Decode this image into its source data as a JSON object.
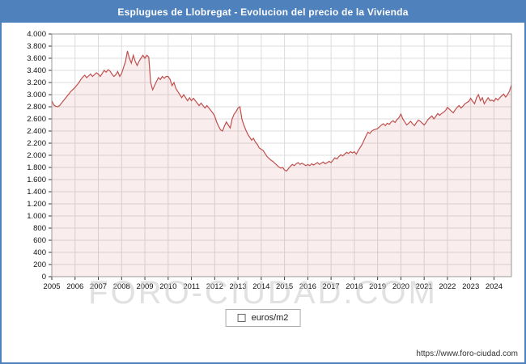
{
  "header": {
    "title": "Esplugues de Llobregat - Evolucion del precio de la Vivienda"
  },
  "legend": {
    "label": "euros/m2"
  },
  "watermark": {
    "text": "FORO-CIUDAD.COM"
  },
  "footer": {
    "url": "https://www.foro-ciudad.com"
  },
  "colors": {
    "accent": "#4f81bd",
    "line": "#c0504d",
    "grid": "#dcdcdc",
    "axis": "#999999"
  },
  "chart_data": {
    "type": "area",
    "title": "Esplugues de Llobregat - Evolucion del precio de la Vivienda",
    "ylabel": "euros/m2",
    "ylim": [
      0,
      4000
    ],
    "ytick_step": 200,
    "start_year": 2005,
    "end_year": 2024,
    "x_unit": "month",
    "grid": true,
    "legend_position": "bottom",
    "series": [
      {
        "name": "euros/m2",
        "color": "#c0504d",
        "fill_opacity": 0.1,
        "values": [
          2900,
          2830,
          2810,
          2800,
          2820,
          2860,
          2900,
          2940,
          2980,
          3020,
          3060,
          3090,
          3120,
          3160,
          3200,
          3250,
          3290,
          3320,
          3280,
          3310,
          3340,
          3300,
          3330,
          3360,
          3340,
          3300,
          3350,
          3400,
          3370,
          3410,
          3390,
          3340,
          3300,
          3330,
          3380,
          3300,
          3350,
          3450,
          3550,
          3720,
          3600,
          3520,
          3650,
          3550,
          3480,
          3550,
          3600,
          3650,
          3600,
          3650,
          3620,
          3200,
          3080,
          3150,
          3220,
          3280,
          3250,
          3300,
          3270,
          3300,
          3300,
          3250,
          3150,
          3200,
          3100,
          3050,
          3000,
          2950,
          3000,
          2950,
          2900,
          2950,
          2900,
          2940,
          2900,
          2860,
          2820,
          2860,
          2820,
          2780,
          2820,
          2780,
          2740,
          2700,
          2650,
          2550,
          2480,
          2420,
          2400,
          2480,
          2550,
          2500,
          2450,
          2600,
          2680,
          2720,
          2780,
          2800,
          2600,
          2500,
          2420,
          2350,
          2300,
          2250,
          2280,
          2220,
          2180,
          2120,
          2100,
          2080,
          2030,
          1980,
          1950,
          1920,
          1900,
          1870,
          1840,
          1810,
          1790,
          1800,
          1760,
          1740,
          1780,
          1820,
          1850,
          1830,
          1860,
          1880,
          1850,
          1870,
          1850,
          1830,
          1850,
          1830,
          1860,
          1840,
          1860,
          1880,
          1850,
          1870,
          1890,
          1860,
          1880,
          1900,
          1880,
          1920,
          1960,
          1940,
          1980,
          2010,
          1990,
          2020,
          2050,
          2030,
          2060,
          2040,
          2060,
          2020,
          2080,
          2130,
          2180,
          2250,
          2320,
          2380,
          2360,
          2400,
          2420,
          2430,
          2440,
          2470,
          2500,
          2520,
          2490,
          2530,
          2510,
          2550,
          2570,
          2540,
          2590,
          2620,
          2680,
          2600,
          2550,
          2500,
          2530,
          2560,
          2520,
          2490,
          2540,
          2580,
          2560,
          2530,
          2500,
          2540,
          2590,
          2620,
          2650,
          2600,
          2640,
          2690,
          2660,
          2690,
          2710,
          2740,
          2790,
          2760,
          2730,
          2700,
          2750,
          2790,
          2820,
          2780,
          2810,
          2850,
          2870,
          2890,
          2940,
          2890,
          2850,
          2950,
          3000,
          2900,
          2950,
          2850,
          2900,
          2950,
          2900,
          2910,
          2890,
          2940,
          2910,
          2950,
          2980,
          3010,
          2960,
          3000,
          3060,
          3160
        ]
      }
    ]
  }
}
